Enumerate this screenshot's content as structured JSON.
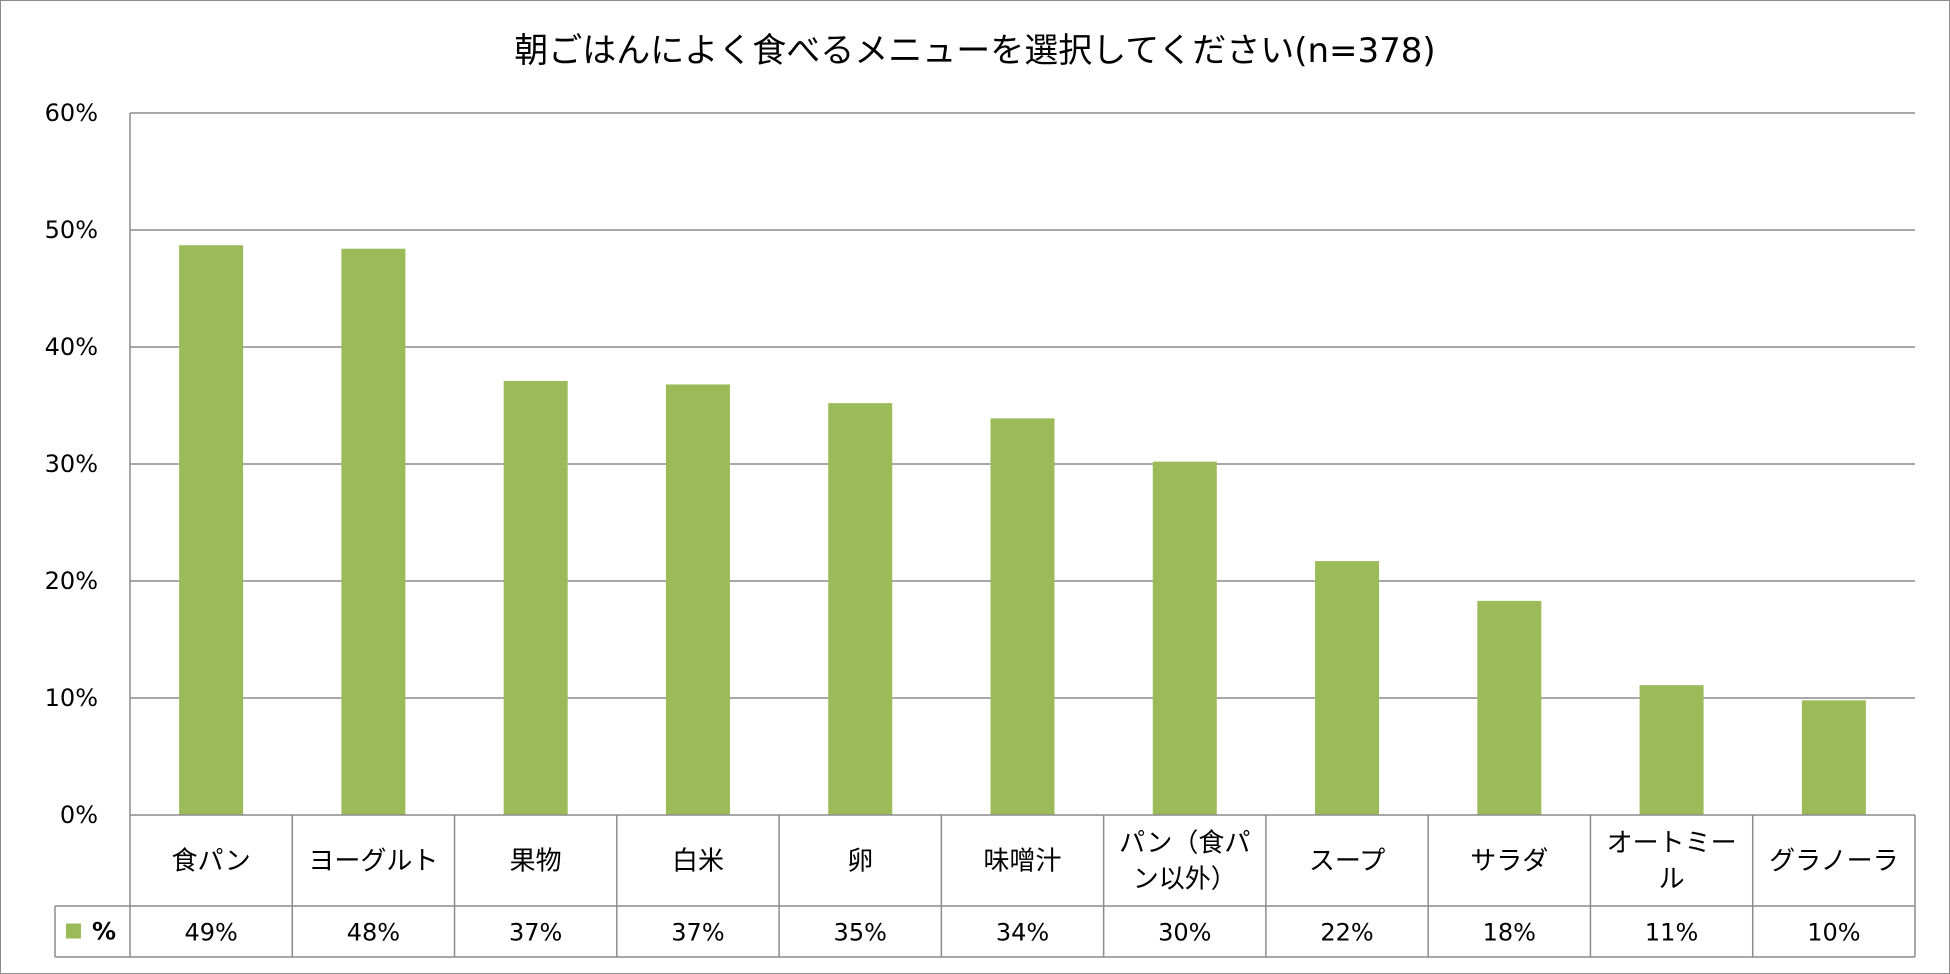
{
  "chart_data": {
    "type": "bar",
    "title": "朝ごはんによく食べるメニューを選択してください(n=378)",
    "categories": [
      [
        "食パン"
      ],
      [
        "ヨーグルト"
      ],
      [
        "果物"
      ],
      [
        "白米"
      ],
      [
        "卵"
      ],
      [
        "味噌汁"
      ],
      [
        "パン（食パ",
        "ン以外）"
      ],
      [
        "スープ"
      ],
      [
        "サラダ"
      ],
      [
        "オートミー",
        "ル"
      ],
      [
        "グラノーラ"
      ]
    ],
    "series": [
      {
        "name": "%",
        "values": [
          48.7,
          48.4,
          37.1,
          36.8,
          35.2,
          33.9,
          30.2,
          21.7,
          18.3,
          11.1,
          9.8
        ],
        "labels": [
          "49%",
          "48%",
          "37%",
          "37%",
          "35%",
          "34%",
          "30%",
          "22%",
          "18%",
          "11%",
          "10%"
        ],
        "color": "#9bbb59"
      }
    ],
    "y_ticks": [
      "0%",
      "10%",
      "20%",
      "30%",
      "40%",
      "50%",
      "60%"
    ],
    "ylim": [
      0,
      60
    ],
    "grid": true,
    "legend_position": "data-table",
    "xlabel": "",
    "ylabel": ""
  }
}
